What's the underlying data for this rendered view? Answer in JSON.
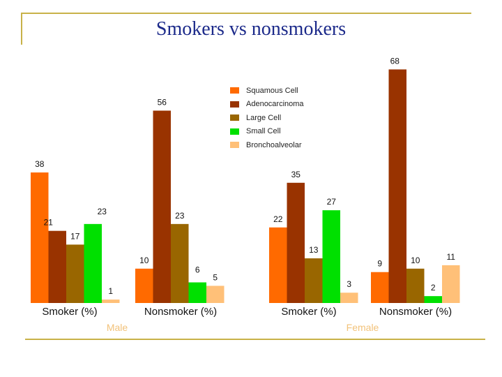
{
  "slide": {
    "title": "Smokers vs nonsmokers"
  },
  "chart_data": {
    "type": "bar",
    "title": "Smokers vs nonsmokers",
    "categories": [
      "Smoker (%)",
      "Nonsmoker (%)",
      "Smoker (%)",
      "Nonsmoker (%)"
    ],
    "gender_labels": [
      "Male",
      "Female"
    ],
    "series": [
      {
        "name": "Squamous Cell",
        "color": "#ff6a00",
        "values": [
          38,
          10,
          22,
          9
        ]
      },
      {
        "name": "Adenocarcinoma",
        "color": "#993300",
        "values": [
          21,
          56,
          35,
          68
        ]
      },
      {
        "name": "Large Cell",
        "color": "#996600",
        "values": [
          17,
          23,
          13,
          10
        ]
      },
      {
        "name": "Small Cell",
        "color": "#00e000",
        "values": [
          23,
          6,
          27,
          2
        ]
      },
      {
        "name": "Bronchoalveolar",
        "color": "#ffc078",
        "values": [
          1,
          5,
          3,
          11
        ]
      }
    ],
    "ylim": [
      0,
      70
    ],
    "legend_position": "top-center",
    "grid": false
  }
}
